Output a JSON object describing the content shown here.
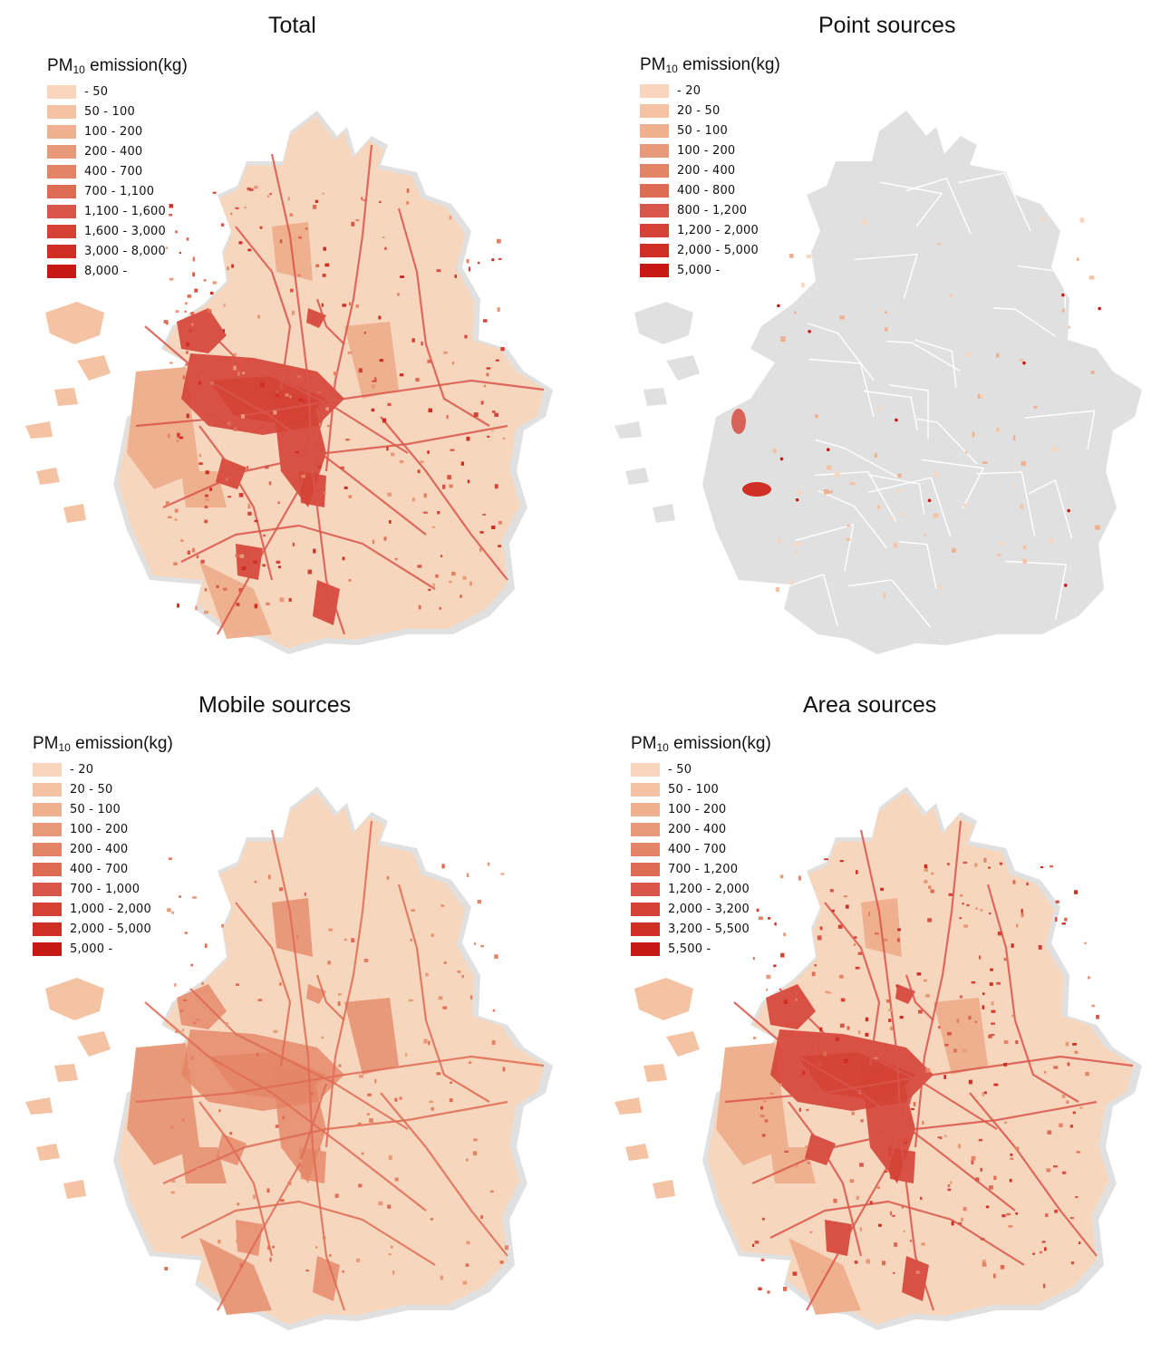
{
  "legend_title_prefix": "PM",
  "legend_title_sub": "10",
  "legend_title_suffix": " emission(kg)",
  "panels": [
    {
      "id": "total",
      "title": "Total",
      "legend": [
        "- 50",
        "50 - 100",
        "100 - 200",
        "200 - 400",
        "400 - 700",
        "700 - 1,100",
        "1,100 - 1,600",
        "1,600 - 3,000",
        "3,000 - 8,000",
        "8,000 -"
      ],
      "intensity": "high"
    },
    {
      "id": "point",
      "title": "Point sources",
      "legend": [
        "- 20",
        "20 - 50",
        "50 - 100",
        "100 - 200",
        "200 - 400",
        "400 - 800",
        "800 - 1,200",
        "1,200 - 2,000",
        "2,000 - 5,000",
        "5,000 -"
      ],
      "intensity": "none"
    },
    {
      "id": "mobile",
      "title": "Mobile sources",
      "legend": [
        "- 20",
        "20 - 50",
        "50 - 100",
        "100 - 200",
        "200 - 400",
        "400 - 700",
        "700 - 1,000",
        "1,000 - 2,000",
        "2,000 - 5,000",
        "5,000 -"
      ],
      "intensity": "low"
    },
    {
      "id": "area",
      "title": "Area sources",
      "legend": [
        "- 50",
        "50 - 100",
        "100 - 200",
        "200 - 400",
        "400 - 700",
        "700 - 1,200",
        "1,200 - 2,000",
        "2,000 - 3,200",
        "3,200 - 5,500",
        "5,500 -"
      ],
      "intensity": "high"
    }
  ],
  "colors": {
    "class_ramp": [
      "#f8d5bc",
      "#f3c3a3",
      "#eeb08e",
      "#e8997a",
      "#e38466",
      "#de6b54",
      "#d8554a",
      "#d44236",
      "#cf2e23",
      "#c81815"
    ],
    "land_gray": "#e0e0e0",
    "boundary": "#ffffff"
  }
}
